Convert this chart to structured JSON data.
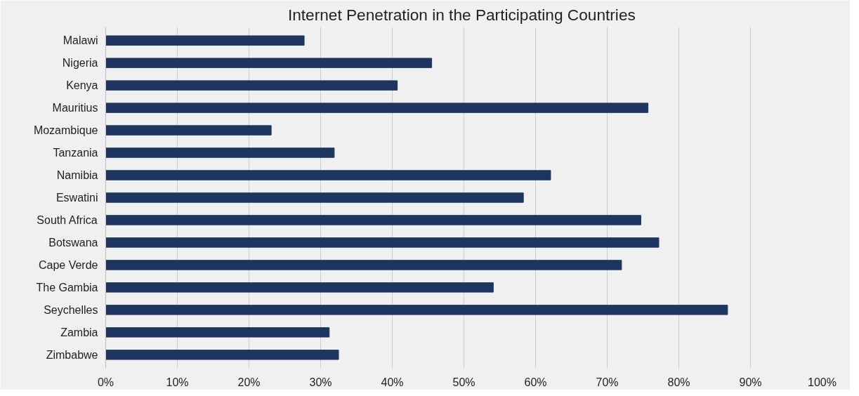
{
  "chart_data": {
    "type": "bar",
    "orientation": "horizontal",
    "title": "Internet  Penetration in the Participating Countries",
    "categories": [
      "Malawi",
      "Nigeria",
      "Kenya",
      "Mauritius",
      "Mozambique",
      "Tanzania",
      "Namibia",
      "Eswatini",
      "South Africa",
      "Botswana",
      "Cape Verde",
      "The Gambia",
      "Seychelles",
      "Zambia",
      "Zimbabwe"
    ],
    "values": [
      27.7,
      45.5,
      40.7,
      75.7,
      23.1,
      31.9,
      62.1,
      58.3,
      74.7,
      77.2,
      72.0,
      54.1,
      86.8,
      31.2,
      32.5
    ],
    "color": "#1f3560",
    "xlim": [
      0,
      100
    ],
    "xticks": [
      {
        "value": 0,
        "label": "0%"
      },
      {
        "value": 10,
        "label": "10%"
      },
      {
        "value": 20,
        "label": "20%"
      },
      {
        "value": 30,
        "label": "30%"
      },
      {
        "value": 40,
        "label": "40%"
      },
      {
        "value": 50,
        "label": "50%"
      },
      {
        "value": 60,
        "label": "60%"
      },
      {
        "value": 70,
        "label": "70%"
      },
      {
        "value": 80,
        "label": "80%"
      },
      {
        "value": 90,
        "label": "90%"
      },
      {
        "value": 100,
        "label": "100%"
      }
    ],
    "grid": "x"
  }
}
